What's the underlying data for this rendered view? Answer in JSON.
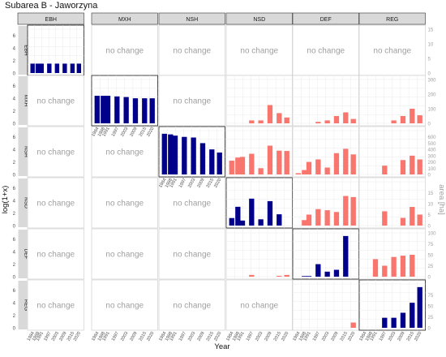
{
  "title": "Subarea B - Jaworzyna",
  "x_axis_label": "Year",
  "y_axis_left_label": "log(1+x)",
  "y_axis_right_label": "area [ha]",
  "no_change_label": "no change",
  "colors": {
    "log_series": "#00008b",
    "area_series": "#f8766d",
    "strip": "#d9d9d9",
    "grid": "#ebebeb",
    "panel_border": "#333333",
    "right_axis_text": "#a0a0a0"
  },
  "chart_data": {
    "type": "bar",
    "layout": "facet-grid 6x6",
    "title": "Subarea B - Jaworzyna",
    "xlabel": "Year",
    "ylabel_left": "log(1+x)",
    "ylabel_right": "area [ha]",
    "column_labels": [
      "EBH",
      "MXH",
      "NSH",
      "NSD",
      "DEF",
      "REG"
    ],
    "row_labels": [
      "EBH",
      "MXH",
      "NSH",
      "NSD",
      "DEF",
      "REG"
    ],
    "years": [
      1984,
      1988,
      1991,
      1997,
      2003,
      2009,
      2015,
      2020
    ],
    "x_tick_labels": [
      "1984",
      "1988",
      "1991",
      "1997",
      "2003",
      "2009",
      "2015",
      "2020"
    ],
    "left_axis": {
      "range": [
        0,
        7
      ],
      "ticks": [
        "0",
        "2",
        "4",
        "6"
      ]
    },
    "right_axis_ticks": [
      {
        "row": "EBH",
        "max": 15,
        "ticks": [
          "0",
          "5",
          "10",
          "15"
        ]
      },
      {
        "row": "MXH",
        "max": 300,
        "ticks": [
          "0",
          "100",
          "200",
          "300"
        ]
      },
      {
        "row": "NSH",
        "max": 700,
        "ticks": [
          "0",
          "100",
          "200",
          "300",
          "400",
          "500",
          "600"
        ]
      },
      {
        "row": "NSD",
        "max": 20,
        "ticks": [
          "0",
          "5",
          "10",
          "15"
        ]
      },
      {
        "row": "DEF",
        "max": 100,
        "ticks": [
          "0",
          "25",
          "50",
          "75",
          "100"
        ]
      },
      {
        "row": "REG",
        "max": 100,
        "ticks": [
          "0",
          "25",
          "50",
          "75"
        ]
      }
    ],
    "panels": [
      {
        "row": "EBH",
        "col": "EBH",
        "kind": "log",
        "values": [
          1.5,
          1.5,
          1.5,
          1.5,
          1.5,
          1.5,
          1.5,
          1.5
        ]
      },
      {
        "row": "EBH",
        "col": "MXH",
        "kind": "none"
      },
      {
        "row": "EBH",
        "col": "NSH",
        "kind": "none"
      },
      {
        "row": "EBH",
        "col": "NSD",
        "kind": "none"
      },
      {
        "row": "EBH",
        "col": "DEF",
        "kind": "none"
      },
      {
        "row": "EBH",
        "col": "REG",
        "kind": "none"
      },
      {
        "row": "MXH",
        "col": "EBH",
        "kind": "none"
      },
      {
        "row": "MXH",
        "col": "MXH",
        "kind": "log",
        "values": [
          4.4,
          4.4,
          4.4,
          4.3,
          4.2,
          4.0,
          4.0,
          4.0
        ]
      },
      {
        "row": "MXH",
        "col": "NSH",
        "kind": "none"
      },
      {
        "row": "MXH",
        "col": "NSD",
        "kind": "area",
        "values": [
          0,
          0,
          0,
          20,
          20,
          125,
          70,
          40
        ]
      },
      {
        "row": "MXH",
        "col": "DEF",
        "kind": "area",
        "values": [
          0,
          0,
          0,
          10,
          20,
          50,
          75,
          30
        ]
      },
      {
        "row": "MXH",
        "col": "REG",
        "kind": "area",
        "values": [
          0,
          0,
          0,
          0,
          20,
          50,
          100,
          55
        ]
      },
      {
        "row": "NSH",
        "col": "EBH",
        "kind": "none"
      },
      {
        "row": "NSH",
        "col": "MXH",
        "kind": "none"
      },
      {
        "row": "NSH",
        "col": "NSH",
        "kind": "log",
        "values": [
          6.5,
          6.4,
          6.2,
          6.0,
          5.9,
          5.0,
          4.0,
          3.5
        ]
      },
      {
        "row": "NSH",
        "col": "NSD",
        "kind": "area",
        "values": [
          220,
          270,
          280,
          330,
          100,
          460,
          380,
          375
        ]
      },
      {
        "row": "NSH",
        "col": "DEF",
        "kind": "area",
        "values": [
          20,
          70,
          200,
          240,
          110,
          340,
          410,
          320
        ]
      },
      {
        "row": "NSH",
        "col": "REG",
        "kind": "area",
        "values": [
          0,
          0,
          0,
          140,
          0,
          230,
          300,
          240
        ]
      },
      {
        "row": "NSD",
        "col": "EBH",
        "kind": "none"
      },
      {
        "row": "NSD",
        "col": "MXH",
        "kind": "none"
      },
      {
        "row": "NSD",
        "col": "NSH",
        "kind": "none"
      },
      {
        "row": "NSD",
        "col": "NSD",
        "kind": "log",
        "values": [
          1.2,
          3.0,
          0.8,
          4.3,
          1.0,
          3.9,
          1.8,
          0
        ]
      },
      {
        "row": "NSD",
        "col": "DEF",
        "kind": "area",
        "values": [
          0,
          2.5,
          5,
          7.5,
          7.0,
          6.2,
          13.5,
          13.0
        ]
      },
      {
        "row": "NSD",
        "col": "REG",
        "kind": "area",
        "values": [
          0,
          0,
          0,
          6.5,
          0,
          3.5,
          8.5,
          5.0
        ]
      },
      {
        "row": "DEF",
        "col": "EBH",
        "kind": "none"
      },
      {
        "row": "DEF",
        "col": "MXH",
        "kind": "none"
      },
      {
        "row": "DEF",
        "col": "NSH",
        "kind": "none"
      },
      {
        "row": "DEF",
        "col": "NSD",
        "kind": "area",
        "values": [
          0,
          0,
          0,
          4,
          0,
          0,
          2,
          4
        ]
      },
      {
        "row": "DEF",
        "col": "DEF",
        "kind": "log",
        "values": [
          0,
          0.1,
          0.1,
          2.0,
          0.8,
          1.1,
          6.5,
          0
        ]
      },
      {
        "row": "DEF",
        "col": "REG",
        "kind": "area",
        "values": [
          0,
          0,
          40,
          25,
          45,
          48,
          50,
          0
        ]
      },
      {
        "row": "REG",
        "col": "EBH",
        "kind": "none"
      },
      {
        "row": "REG",
        "col": "MXH",
        "kind": "none"
      },
      {
        "row": "REG",
        "col": "NSH",
        "kind": "none"
      },
      {
        "row": "REG",
        "col": "NSD",
        "kind": "none"
      },
      {
        "row": "REG",
        "col": "DEF",
        "kind": "area",
        "values": [
          0,
          0,
          0,
          0,
          0,
          0,
          0,
          12
        ]
      },
      {
        "row": "REG",
        "col": "REG",
        "kind": "log",
        "values": [
          0,
          0,
          0,
          1.6,
          1.6,
          2.4,
          4.0,
          6.5
        ]
      }
    ]
  }
}
